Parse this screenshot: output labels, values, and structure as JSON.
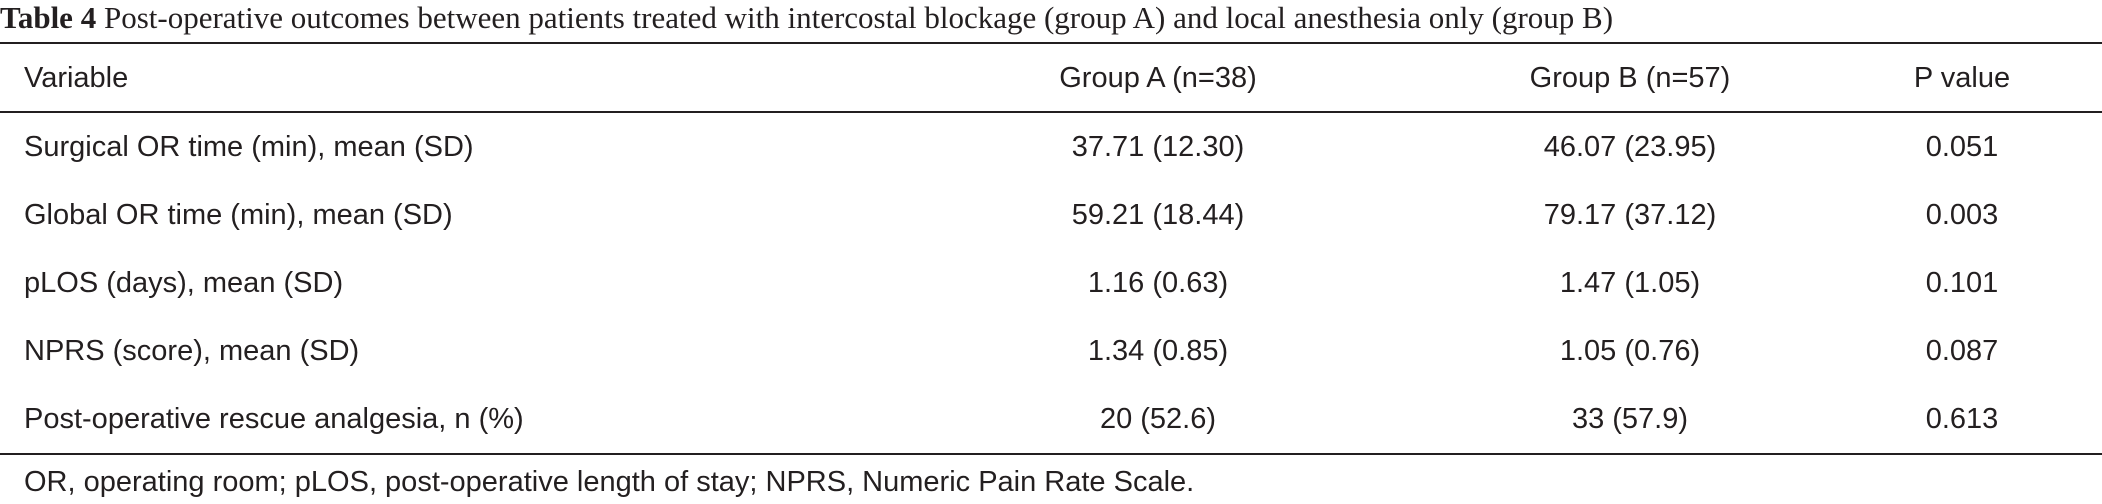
{
  "table": {
    "caption_label": "Table 4",
    "caption_text": " Post-operative outcomes between patients treated with intercostal blockage (group A) and local anesthesia only (group B)",
    "columns": [
      "Variable",
      "Group A (n=38)",
      "Group B (n=57)",
      "P value"
    ],
    "rows": [
      [
        "Surgical OR time (min), mean (SD)",
        "37.71 (12.30)",
        "46.07 (23.95)",
        "0.051"
      ],
      [
        "Global OR time (min), mean (SD)",
        "59.21 (18.44)",
        "79.17 (37.12)",
        "0.003"
      ],
      [
        "pLOS (days), mean (SD)",
        "1.16 (0.63)",
        "1.47 (1.05)",
        "0.101"
      ],
      [
        "NPRS (score), mean (SD)",
        "1.34 (0.85)",
        "1.05 (0.76)",
        "0.087"
      ],
      [
        "Post-operative rescue analgesia, n (%)",
        "20 (52.6)",
        "33 (57.9)",
        "0.613"
      ]
    ],
    "footnote": "OR, operating room; pLOS, post-operative length of stay; NPRS, Numeric Pain Rate Scale."
  }
}
